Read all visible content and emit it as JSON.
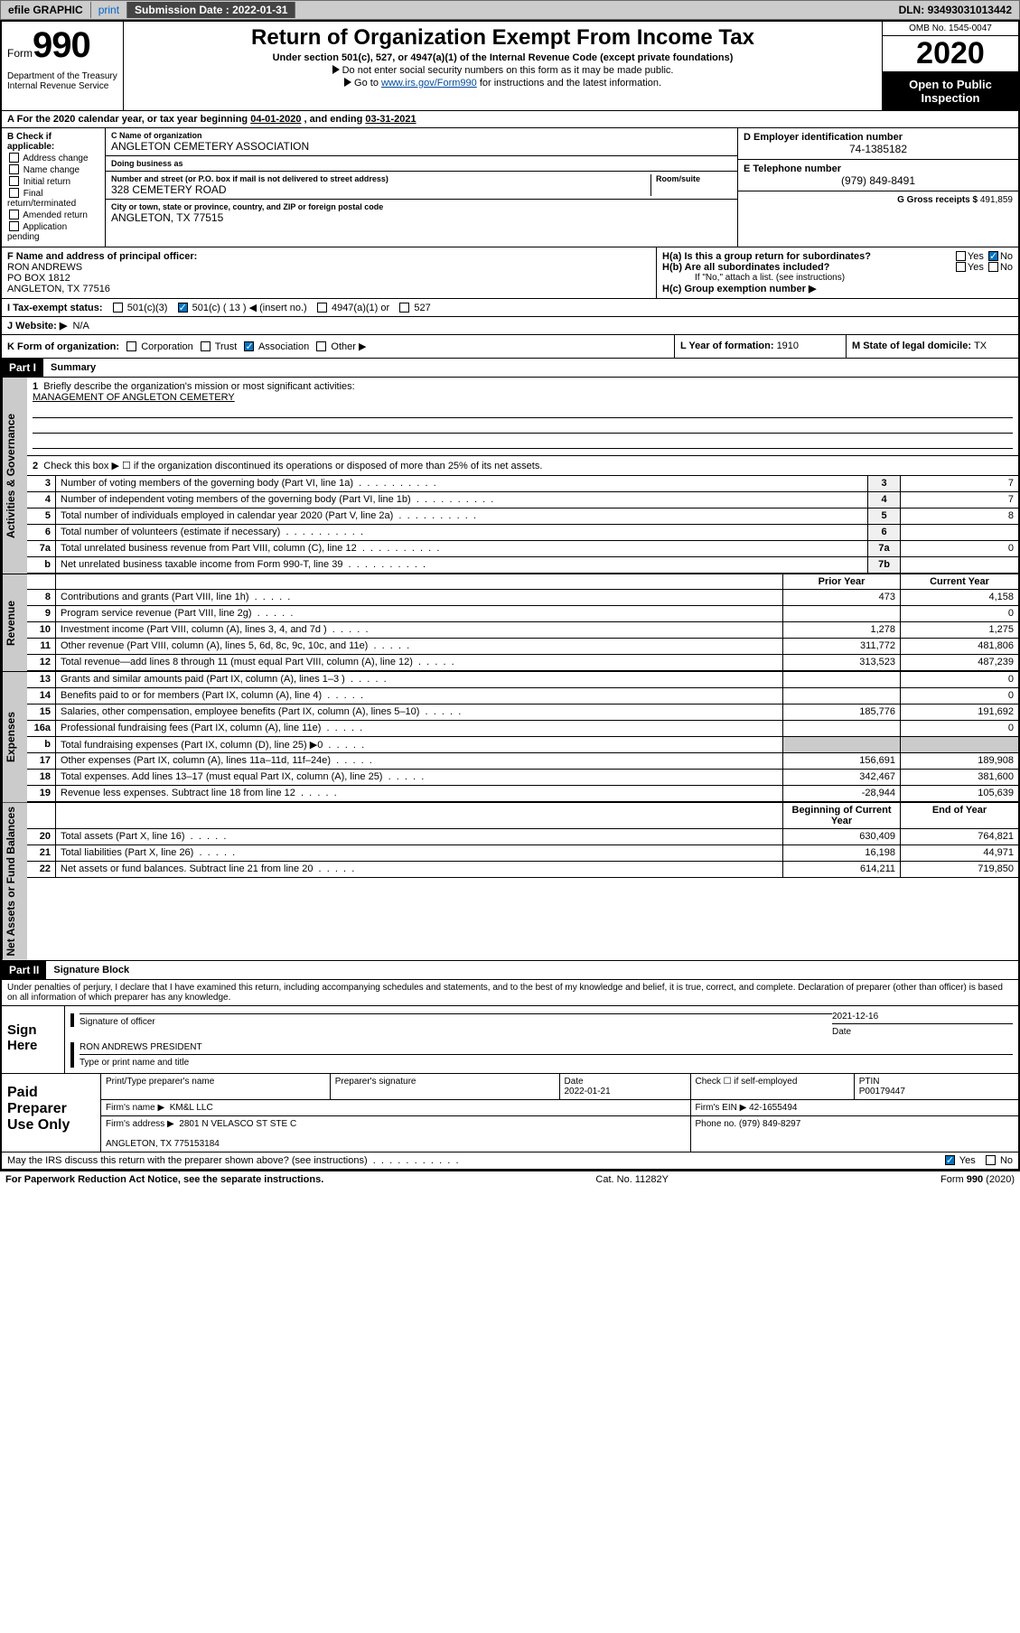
{
  "topbar": {
    "efile": "efile GRAPHIC",
    "print": "print",
    "subdate_label": "Submission Date : ",
    "subdate": "2022-01-31",
    "dln_label": "DLN: ",
    "dln": "93493031013442"
  },
  "header": {
    "form_word": "Form",
    "form_num": "990",
    "dept": "Department of the Treasury\nInternal Revenue Service",
    "title": "Return of Organization Exempt From Income Tax",
    "sub": "Under section 501(c), 527, or 4947(a)(1) of the Internal Revenue Code (except private foundations)",
    "note1": "Do not enter social security numbers on this form as it may be made public.",
    "note2_pre": "Go to ",
    "note2_link": "www.irs.gov/Form990",
    "note2_post": " for instructions and the latest information.",
    "omb": "OMB No. 1545-0047",
    "year": "2020",
    "open": "Open to Public Inspection"
  },
  "taxyear": {
    "label_a": "For the 2020 calendar year, or tax year beginning ",
    "begin": "04-01-2020",
    "mid": " , and ending ",
    "end": "03-31-2021"
  },
  "boxB": {
    "label": "B Check if applicable:",
    "opts": [
      "Address change",
      "Name change",
      "Initial return",
      "Final return/terminated",
      "Amended return",
      "Application pending"
    ]
  },
  "boxC": {
    "name_lbl": "C Name of organization",
    "name": "ANGLETON CEMETERY ASSOCIATION",
    "dba_lbl": "Doing business as",
    "dba": "",
    "street_lbl": "Number and street (or P.O. box if mail is not delivered to street address)",
    "room_lbl": "Room/suite",
    "street": "328 CEMETERY ROAD",
    "city_lbl": "City or town, state or province, country, and ZIP or foreign postal code",
    "city": "ANGLETON, TX  77515"
  },
  "boxD": {
    "lbl": "D Employer identification number",
    "val": "74-1385182"
  },
  "boxE": {
    "lbl": "E Telephone number",
    "val": "(979) 849-8491"
  },
  "boxG": {
    "lbl": "G Gross receipts $",
    "val": "491,859"
  },
  "boxF": {
    "lbl": "F Name and address of principal officer:",
    "name": "RON ANDREWS",
    "addr1": "PO BOX 1812",
    "addr2": "ANGLETON, TX  77516"
  },
  "boxH": {
    "a_lbl": "H(a)  Is this a group return for subordinates?",
    "a_yes": "Yes",
    "a_no": "No",
    "b_lbl": "H(b)  Are all subordinates included?",
    "b_yes": "Yes",
    "b_no": "No",
    "b_note": "If \"No,\" attach a list. (see instructions)",
    "c_lbl": "H(c)  Group exemption number ▶"
  },
  "boxI": {
    "lbl": "I   Tax-exempt status:",
    "c3": "501(c)(3)",
    "c": "501(c) ( 13 ) ◀ (insert no.)",
    "a1": "4947(a)(1) or",
    "p527": "527"
  },
  "boxJ": {
    "lbl": "J   Website: ▶",
    "val": "N/A"
  },
  "boxK": {
    "lbl": "K Form of organization:",
    "opts": [
      "Corporation",
      "Trust",
      "Association",
      "Other ▶"
    ],
    "checked_idx": 2
  },
  "boxL": {
    "lbl": "L Year of formation: ",
    "val": "1910"
  },
  "boxM": {
    "lbl": "M State of legal domicile: ",
    "val": "TX"
  },
  "part1": {
    "tag": "Part I",
    "title": "Summary",
    "q1_lbl": "Briefly describe the organization's mission or most significant activities:",
    "q1_val": "MANAGEMENT OF ANGLETON CEMETERY",
    "q2": "Check this box ▶ ☐  if the organization discontinued its operations or disposed of more than 25% of its net assets.",
    "side_gov": "Activities & Governance",
    "side_rev": "Revenue",
    "side_exp": "Expenses",
    "side_net": "Net Assets or Fund Balances",
    "lines_gov": [
      {
        "n": "3",
        "t": "Number of voting members of the governing body (Part VI, line 1a)",
        "r": "3",
        "v": "7"
      },
      {
        "n": "4",
        "t": "Number of independent voting members of the governing body (Part VI, line 1b)",
        "r": "4",
        "v": "7"
      },
      {
        "n": "5",
        "t": "Total number of individuals employed in calendar year 2020 (Part V, line 2a)",
        "r": "5",
        "v": "8"
      },
      {
        "n": "6",
        "t": "Total number of volunteers (estimate if necessary)",
        "r": "6",
        "v": ""
      },
      {
        "n": "7a",
        "t": "Total unrelated business revenue from Part VIII, column (C), line 12",
        "r": "7a",
        "v": "0"
      },
      {
        "n": "b",
        "t": "Net unrelated business taxable income from Form 990-T, line 39",
        "r": "7b",
        "v": ""
      }
    ],
    "col_prior": "Prior Year",
    "col_curr": "Current Year",
    "col_boy": "Beginning of Current Year",
    "col_eoy": "End of Year",
    "lines_rev": [
      {
        "n": "8",
        "t": "Contributions and grants (Part VIII, line 1h)",
        "p": "473",
        "c": "4,158"
      },
      {
        "n": "9",
        "t": "Program service revenue (Part VIII, line 2g)",
        "p": "",
        "c": "0"
      },
      {
        "n": "10",
        "t": "Investment income (Part VIII, column (A), lines 3, 4, and 7d )",
        "p": "1,278",
        "c": "1,275"
      },
      {
        "n": "11",
        "t": "Other revenue (Part VIII, column (A), lines 5, 6d, 8c, 9c, 10c, and 11e)",
        "p": "311,772",
        "c": "481,806"
      },
      {
        "n": "12",
        "t": "Total revenue—add lines 8 through 11 (must equal Part VIII, column (A), line 12)",
        "p": "313,523",
        "c": "487,239"
      }
    ],
    "lines_exp": [
      {
        "n": "13",
        "t": "Grants and similar amounts paid (Part IX, column (A), lines 1–3 )",
        "p": "",
        "c": "0"
      },
      {
        "n": "14",
        "t": "Benefits paid to or for members (Part IX, column (A), line 4)",
        "p": "",
        "c": "0"
      },
      {
        "n": "15",
        "t": "Salaries, other compensation, employee benefits (Part IX, column (A), lines 5–10)",
        "p": "185,776",
        "c": "191,692"
      },
      {
        "n": "16a",
        "t": "Professional fundraising fees (Part IX, column (A), line 11e)",
        "p": "",
        "c": "0"
      },
      {
        "n": "b",
        "t": "Total fundraising expenses (Part IX, column (D), line 25) ▶0",
        "p": "__shade__",
        "c": "__shade__"
      },
      {
        "n": "17",
        "t": "Other expenses (Part IX, column (A), lines 11a–11d, 11f–24e)",
        "p": "156,691",
        "c": "189,908"
      },
      {
        "n": "18",
        "t": "Total expenses. Add lines 13–17 (must equal Part IX, column (A), line 25)",
        "p": "342,467",
        "c": "381,600"
      },
      {
        "n": "19",
        "t": "Revenue less expenses. Subtract line 18 from line 12",
        "p": "-28,944",
        "c": "105,639"
      }
    ],
    "lines_net": [
      {
        "n": "20",
        "t": "Total assets (Part X, line 16)",
        "p": "630,409",
        "c": "764,821"
      },
      {
        "n": "21",
        "t": "Total liabilities (Part X, line 26)",
        "p": "16,198",
        "c": "44,971"
      },
      {
        "n": "22",
        "t": "Net assets or fund balances. Subtract line 21 from line 20",
        "p": "614,211",
        "c": "719,850"
      }
    ]
  },
  "part2": {
    "tag": "Part II",
    "title": "Signature Block",
    "decl": "Under penalties of perjury, I declare that I have examined this return, including accompanying schedules and statements, and to the best of my knowledge and belief, it is true, correct, and complete. Declaration of preparer (other than officer) is based on all information of which preparer has any knowledge.",
    "sign_here": "Sign Here",
    "sig_officer_lbl": "Signature of officer",
    "sig_date_lbl": "Date",
    "sig_date": "2021-12-16",
    "sig_name_lbl": "Type or print name and title",
    "sig_name": "RON ANDREWS PRESIDENT",
    "paid_lbl": "Paid Preparer Use Only",
    "prep_name_lbl": "Print/Type preparer's name",
    "prep_sig_lbl": "Preparer's signature",
    "prep_date_lbl": "Date",
    "prep_date": "2022-01-21",
    "prep_check_lbl": "Check ☐ if self-employed",
    "ptin_lbl": "PTIN",
    "ptin": "P00179447",
    "firm_name_lbl": "Firm's name    ▶",
    "firm_name": "KM&L LLC",
    "firm_ein_lbl": "Firm's EIN ▶",
    "firm_ein": "42-1655494",
    "firm_addr_lbl": "Firm's address ▶",
    "firm_addr1": "2801 N VELASCO ST STE C",
    "firm_addr2": "ANGLETON, TX  775153184",
    "firm_phone_lbl": "Phone no.",
    "firm_phone": "(979) 849-8297",
    "irs_q": "May the IRS discuss this return with the preparer shown above? (see instructions)",
    "irs_yes": "Yes",
    "irs_no": "No"
  },
  "footer": {
    "left": "For Paperwork Reduction Act Notice, see the separate instructions.",
    "mid": "Cat. No. 11282Y",
    "right": "Form 990 (2020)"
  },
  "colors": {
    "accent": "#0073c0",
    "shade": "#cbcbcb",
    "link": "#004b9b"
  }
}
